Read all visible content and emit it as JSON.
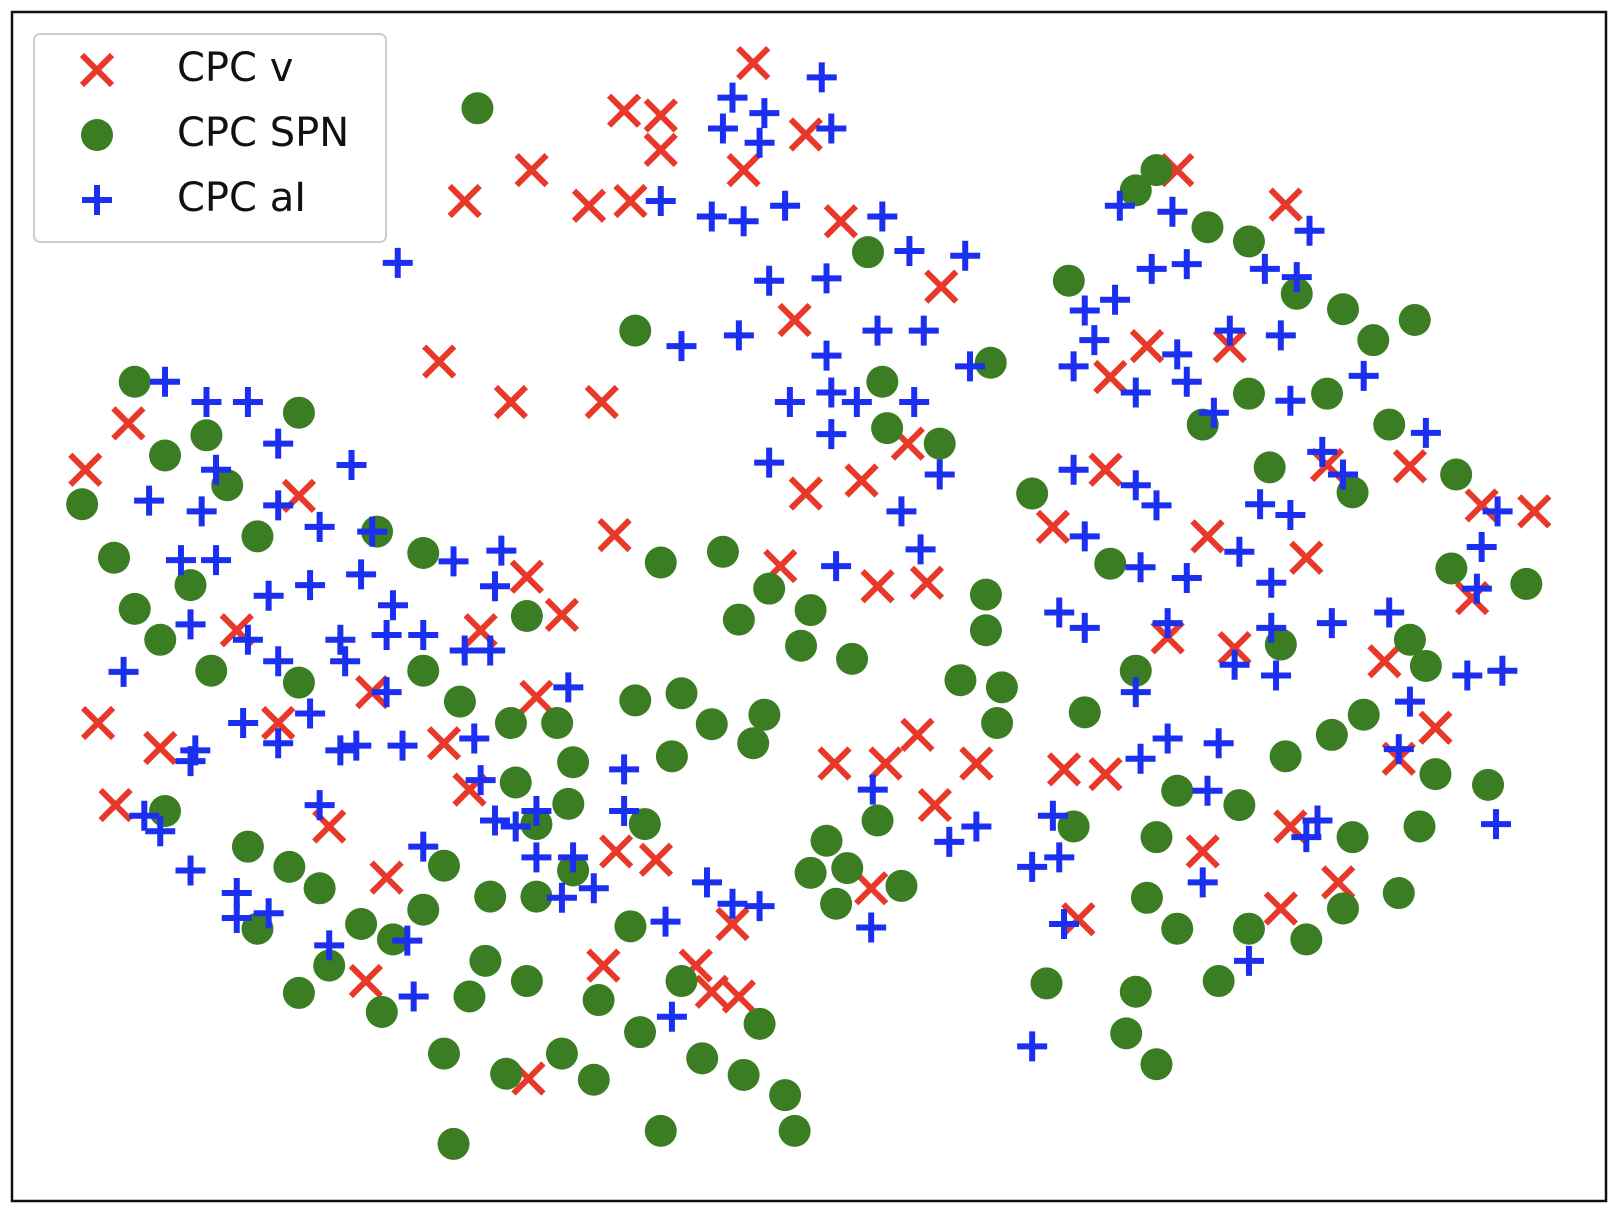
{
  "chart_data": {
    "type": "scatter",
    "xlim": [
      0,
      100
    ],
    "ylim": [
      0,
      100
    ],
    "legend": "upper left",
    "series": [
      {
        "name": "CPC v",
        "color": "#e8382a",
        "marker": "x",
        "x": [
          46.5,
          38.4,
          40.7,
          40.7,
          32.6,
          28.4,
          36.2,
          38.8,
          49.8,
          45.9,
          52.0,
          49.1,
          58.3,
          26.8,
          31.3,
          37.0,
          4.6,
          7.3,
          18.0,
          37.8,
          32.3,
          34.5,
          48.2,
          54.3,
          57.4,
          49.8,
          53.3,
          56.2,
          5.4,
          9.3,
          6.5,
          14.1,
          16.7,
          22.6,
          27.1,
          29.4,
          19.9,
          23.5,
          28.7,
          37.9,
          40.4,
          32.9,
          22.2,
          37.1,
          42.9,
          43.9,
          45.6,
          45.2,
          32.4,
          51.6,
          54.8,
          56.8,
          60.5,
          57.9,
          53.9,
          66.0,
          68.6,
          66.9,
          74.7,
          83.2,
          79.6,
          87.0,
          89.3,
          80.2,
          65.3,
          68.6,
          71.2,
          68.9,
          76.4,
          79.9,
          73.1,
          87.7,
          92.2,
          95.5,
          81.2,
          91.6,
          72.5,
          76.7,
          82.5,
          75.0,
          86.1
        ],
        "values": [
          95.7,
          91.7,
          91.3,
          88.4,
          86.7,
          84.1,
          83.7,
          84.1,
          89.7,
          86.7,
          82.4,
          74.1,
          76.9,
          70.6,
          67.2,
          67.2,
          61.5,
          65.4,
          59.3,
          56.0,
          52.5,
          49.3,
          53.4,
          51.7,
          52.0,
          59.5,
          60.6,
          63.7,
          40.2,
          38.1,
          33.3,
          48.0,
          40.2,
          42.8,
          38.5,
          48.0,
          31.5,
          27.2,
          34.6,
          29.4,
          28.7,
          42.4,
          18.5,
          19.8,
          19.8,
          17.6,
          17.2,
          23.3,
          10.3,
          36.8,
          36.8,
          39.2,
          36.8,
          33.3,
          26.3,
          36.3,
          35.9,
          23.7,
          29.4,
          26.8,
          24.6,
          37.2,
          39.8,
          31.5,
          56.7,
          61.5,
          71.9,
          69.3,
          71.9,
          83.8,
          86.7,
          61.8,
          58.5,
          58.0,
          54.1,
          50.7,
          47.4,
          46.5,
          61.9,
          55.9,
          45.4
        ]
      },
      {
        "name": "CPC SPN",
        "color": "#3a7d22",
        "marker": "o",
        "x": [
          29.2,
          39.1,
          53.7,
          71.8,
          70.5,
          75.0,
          77.6,
          66.3,
          80.6,
          83.5,
          85.4,
          88.0,
          82.5,
          86.4,
          77.6,
          74.7,
          90.6,
          84.1,
          78.9,
          64.0,
          68.9,
          90.3,
          95.0,
          87.7,
          88.7,
          79.6,
          84.8,
          82.8,
          79.9,
          77.0,
          89.3,
          92.6,
          88.3,
          84.1,
          87.0,
          70.5,
          67.3,
          73.1,
          71.8,
          71.2,
          73.1,
          75.7,
          70.5,
          69.9,
          71.8,
          77.6,
          81.2,
          83.5,
          66.6,
          64.9,
          40.7,
          44.6,
          47.5,
          50.1,
          49.5,
          52.7,
          45.6,
          42.0,
          43.9,
          47.2,
          46.5,
          39.1,
          41.4,
          61.1,
          61.1,
          59.5,
          62.1,
          61.8,
          54.3,
          51.1,
          50.1,
          52.4,
          51.7,
          55.8,
          4.4,
          6.4,
          7.7,
          9.3,
          7.7,
          12.2,
          9.6,
          18.0,
          13.5,
          11.2,
          15.4,
          22.9,
          25.8,
          12.5,
          18.0,
          25.8,
          28.1,
          32.3,
          31.3,
          34.2,
          35.2,
          31.6,
          32.9,
          34.9,
          39.7,
          9.6,
          14.8,
          17.4,
          19.3,
          15.4,
          19.9,
          18.0,
          21.9,
          23.9,
          25.8,
          27.1,
          30.0,
          32.9,
          35.2,
          38.8,
          29.7,
          32.3,
          28.7,
          23.2,
          27.1,
          31.0,
          34.5,
          36.8,
          39.4,
          42.0,
          43.3,
          46.9,
          45.9,
          48.5,
          49.1,
          40.7,
          27.7,
          36.5,
          58.2,
          61.4,
          54.6,
          54.9
        ],
        "values": [
          91.9,
          73.2,
          79.8,
          86.7,
          85.0,
          81.9,
          80.7,
          77.4,
          76.3,
          75.0,
          72.4,
          74.1,
          67.9,
          65.3,
          67.9,
          65.3,
          61.1,
          59.6,
          61.7,
          59.5,
          53.6,
          53.2,
          51.9,
          47.2,
          45.0,
          46.8,
          40.9,
          39.2,
          37.4,
          33.3,
          35.9,
          35.0,
          31.5,
          30.6,
          25.9,
          44.6,
          41.1,
          34.5,
          30.6,
          25.5,
          22.9,
          18.5,
          17.6,
          14.1,
          11.5,
          22.9,
          22.0,
          24.6,
          31.5,
          18.3,
          53.7,
          54.6,
          51.5,
          49.7,
          46.7,
          45.6,
          48.9,
          42.7,
          40.1,
          40.9,
          38.5,
          42.1,
          37.4,
          51.0,
          48.0,
          43.8,
          43.2,
          40.2,
          32.0,
          30.3,
          27.6,
          28.0,
          25.0,
          26.5,
          58.6,
          54.1,
          49.8,
          47.2,
          68.9,
          64.4,
          62.7,
          66.3,
          60.2,
          51.8,
          55.9,
          56.3,
          54.5,
          44.6,
          43.6,
          44.6,
          42.0,
          49.2,
          40.2,
          40.2,
          36.9,
          35.2,
          31.7,
          33.4,
          31.7,
          32.8,
          29.8,
          28.1,
          26.3,
          22.9,
          19.8,
          17.5,
          23.3,
          22.0,
          24.5,
          28.2,
          25.6,
          25.6,
          27.8,
          23.1,
          20.2,
          18.5,
          17.2,
          15.9,
          12.4,
          10.7,
          12.4,
          16.9,
          14.2,
          18.5,
          12.0,
          14.9,
          10.6,
          8.9,
          5.9,
          5.9,
          4.8,
          10.2,
          63.7,
          70.5,
          68.9,
          65.0
        ]
      },
      {
        "name": "CPC aI",
        "color": "#1a2ff0",
        "marker": "+",
        "x": [
          50.8,
          45.2,
          47.2,
          44.6,
          51.4,
          46.9,
          40.7,
          43.9,
          45.9,
          48.5,
          54.6,
          24.2,
          47.5,
          51.1,
          56.3,
          59.8,
          42.0,
          45.6,
          51.1,
          54.3,
          57.2,
          60.1,
          48.8,
          51.4,
          53.0,
          56.6,
          47.5,
          51.4,
          58.2,
          55.8,
          57.0,
          51.7,
          69.5,
          72.8,
          73.7,
          71.5,
          78.6,
          80.6,
          81.4,
          67.3,
          69.2,
          67.9,
          66.6,
          73.1,
          73.7,
          76.4,
          79.6,
          75.4,
          70.5,
          80.2,
          84.8,
          88.7,
          66.6,
          70.5,
          71.8,
          67.3,
          70.8,
          73.7,
          77.0,
          79.0,
          82.2,
          83.5,
          78.3,
          80.2,
          65.7,
          67.3,
          72.5,
          79.0,
          82.8,
          86.4,
          91.9,
          92.2,
          93.2,
          70.5,
          72.5,
          75.7,
          76.7,
          79.3,
          87.7,
          91.3,
          93.5,
          87.0,
          70.8,
          75.0,
          81.9,
          81.2,
          93.1,
          74.7,
          77.6,
          65.3,
          65.7,
          64.0,
          66.0,
          64.0,
          54.0,
          58.8,
          60.5,
          53.9,
          9.6,
          12.2,
          14.8,
          16.7,
          21.3,
          12.8,
          8.6,
          11.9,
          16.7,
          19.3,
          22.6,
          10.6,
          12.8,
          16.1,
          18.7,
          21.9,
          23.9,
          11.2,
          14.8,
          20.6,
          23.5,
          27.7,
          30.7,
          30.3,
          25.8,
          28.4,
          30.0,
          7.0,
          16.7,
          18.7,
          20.9,
          23.5,
          14.5,
          16.7,
          20.6,
          21.6,
          24.5,
          11.5,
          11.2,
          8.3,
          9.3,
          11.2,
          19.3,
          29.0,
          29.4,
          30.3,
          31.6,
          32.9,
          34.9,
          38.4,
          38.4,
          25.8,
          32.9,
          35.2,
          14.1,
          16.1,
          14.1,
          19.9,
          24.8,
          25.2,
          34.5,
          36.5,
          41.0,
          43.6,
          45.2,
          46.9,
          41.4
        ],
        "values": [
          94.5,
          92.8,
          91.5,
          90.2,
          90.2,
          89.0,
          84.1,
          82.8,
          82.4,
          83.7,
          82.8,
          78.9,
          77.4,
          77.6,
          79.9,
          79.5,
          71.9,
          72.8,
          71.1,
          73.2,
          73.2,
          70.2,
          67.2,
          68.0,
          67.2,
          67.2,
          62.1,
          64.5,
          61.1,
          58.0,
          54.8,
          53.4,
          83.7,
          83.2,
          78.8,
          78.4,
          78.4,
          77.7,
          81.6,
          74.9,
          75.8,
          72.4,
          70.2,
          71.2,
          68.9,
          73.2,
          72.8,
          66.3,
          68.0,
          67.3,
          69.4,
          64.6,
          61.5,
          60.2,
          58.5,
          55.9,
          53.3,
          52.4,
          54.6,
          52.0,
          63.0,
          61.1,
          58.6,
          57.7,
          49.5,
          48.2,
          48.6,
          48.2,
          48.6,
          49.5,
          51.5,
          55.0,
          58.0,
          42.8,
          38.9,
          38.5,
          45.1,
          44.2,
          42.0,
          44.2,
          44.6,
          38.0,
          37.2,
          34.5,
          32.0,
          30.6,
          31.7,
          26.8,
          20.2,
          32.4,
          28.9,
          28.1,
          23.3,
          13.0,
          34.6,
          30.2,
          31.5,
          23.0,
          68.9,
          67.2,
          67.2,
          63.7,
          61.9,
          61.5,
          58.9,
          58.0,
          58.5,
          56.7,
          56.3,
          53.9,
          53.9,
          50.9,
          51.8,
          52.7,
          50.1,
          48.5,
          47.2,
          47.2,
          47.6,
          53.8,
          54.7,
          51.7,
          47.6,
          46.3,
          46.3,
          44.5,
          45.4,
          41.0,
          45.4,
          42.8,
          40.2,
          38.5,
          37.9,
          38.3,
          38.3,
          37.9,
          37.0,
          32.4,
          31.1,
          27.8,
          33.3,
          38.9,
          35.4,
          32.0,
          31.5,
          32.8,
          43.2,
          36.3,
          32.8,
          29.8,
          28.9,
          28.9,
          25.9,
          24.2,
          23.8,
          21.5,
          21.9,
          17.2,
          25.5,
          26.3,
          23.5,
          26.8,
          25.0,
          24.8,
          15.5
        ]
      }
    ]
  }
}
